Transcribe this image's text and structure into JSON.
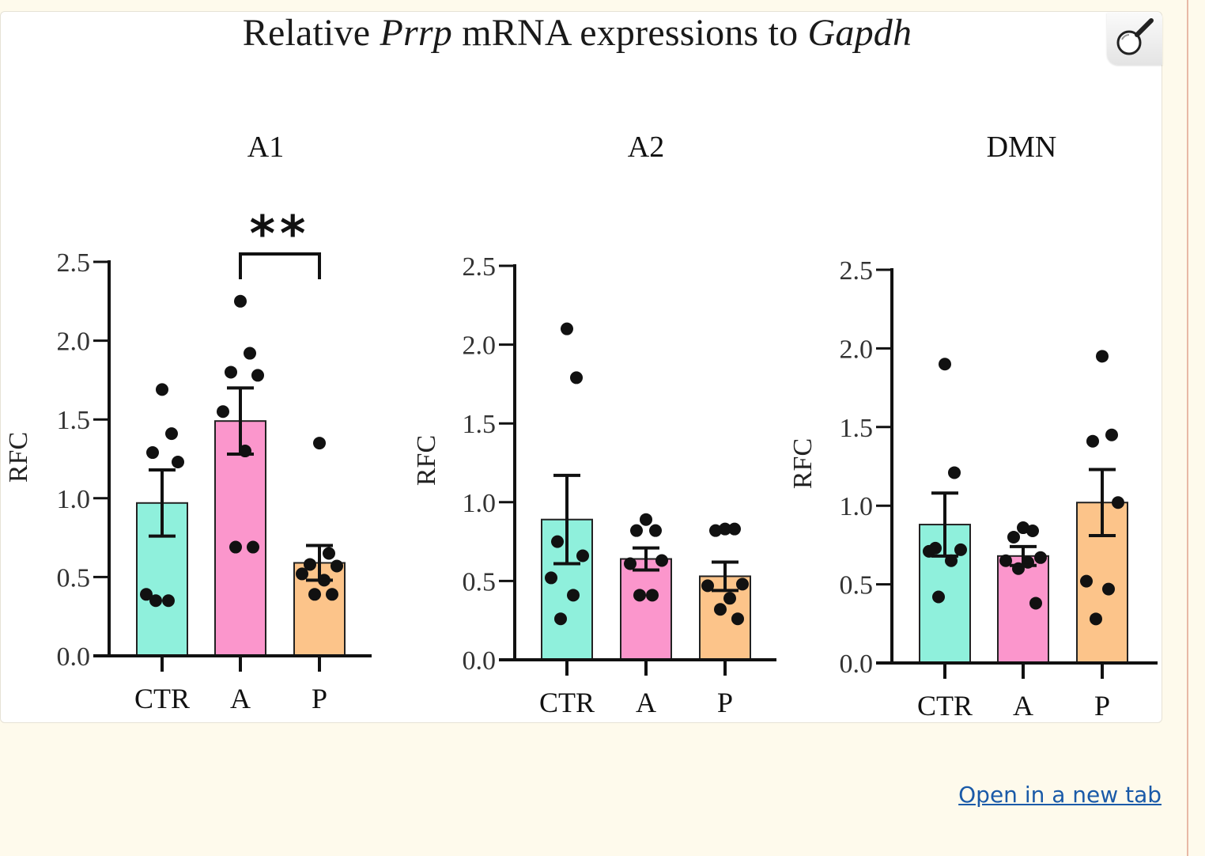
{
  "figure": {
    "title_parts": [
      {
        "text": "Relative ",
        "italic": false
      },
      {
        "text": "Prrp",
        "italic": true
      },
      {
        "text": " mRNA expressions to ",
        "italic": false
      },
      {
        "text": "Gapdh",
        "italic": true
      }
    ]
  },
  "zoom_button": {
    "icon": "magnifier-icon"
  },
  "open_link": {
    "label": "Open in a new tab"
  },
  "colors": {
    "CTR": "#8ff0dc",
    "A": "#fb96cc",
    "P": "#fcc48a",
    "axis": "#111111",
    "dot": "#111111"
  },
  "chart_data": [
    {
      "type": "bar",
      "title": "A1",
      "ylabel": "RFC",
      "ylim": [
        0,
        2.5
      ],
      "yticks": [
        "0.0",
        "0.5",
        "1.0",
        "1.5",
        "2.0",
        "2.5"
      ],
      "categories": [
        "CTR",
        "A",
        "P"
      ],
      "values": [
        0.97,
        1.49,
        0.59
      ],
      "errors": [
        0.21,
        0.21,
        0.11
      ],
      "points": [
        [
          1.69,
          1.41,
          1.29,
          1.23,
          0.39,
          0.35,
          0.35
        ],
        [
          2.25,
          1.92,
          1.8,
          1.78,
          1.55,
          1.3,
          0.69,
          0.69
        ],
        [
          1.35,
          0.65,
          0.58,
          0.57,
          0.52,
          0.48,
          0.39,
          0.39
        ]
      ],
      "significance": {
        "from": "A",
        "to": "P",
        "label": "**"
      }
    },
    {
      "type": "bar",
      "title": "A2",
      "ylabel": "RFC",
      "ylim": [
        0,
        2.5
      ],
      "yticks": [
        "0.0",
        "0.5",
        "1.0",
        "1.5",
        "2.0",
        "2.5"
      ],
      "categories": [
        "CTR",
        "A",
        "P"
      ],
      "values": [
        0.89,
        0.64,
        0.53
      ],
      "errors": [
        0.28,
        0.07,
        0.09
      ],
      "points": [
        [
          2.1,
          1.79,
          0.75,
          0.66,
          0.52,
          0.41,
          0.26
        ],
        [
          0.89,
          0.82,
          0.82,
          0.63,
          0.61,
          0.41,
          0.41
        ],
        [
          0.83,
          0.83,
          0.82,
          0.48,
          0.47,
          0.39,
          0.32,
          0.26
        ]
      ]
    },
    {
      "type": "bar",
      "title": "DMN",
      "ylabel": "RFC",
      "ylim": [
        0,
        2.5
      ],
      "yticks": [
        "0.0",
        "0.5",
        "1.0",
        "1.5",
        "2.0",
        "2.5"
      ],
      "categories": [
        "CTR",
        "A",
        "P"
      ],
      "values": [
        0.88,
        0.68,
        1.02
      ],
      "errors": [
        0.2,
        0.06,
        0.21
      ],
      "points": [
        [
          1.9,
          1.21,
          0.73,
          0.72,
          0.71,
          0.65,
          0.42
        ],
        [
          0.86,
          0.84,
          0.8,
          0.67,
          0.65,
          0.64,
          0.6,
          0.38
        ],
        [
          1.95,
          1.45,
          1.41,
          1.02,
          0.52,
          0.47,
          0.28
        ]
      ]
    }
  ]
}
